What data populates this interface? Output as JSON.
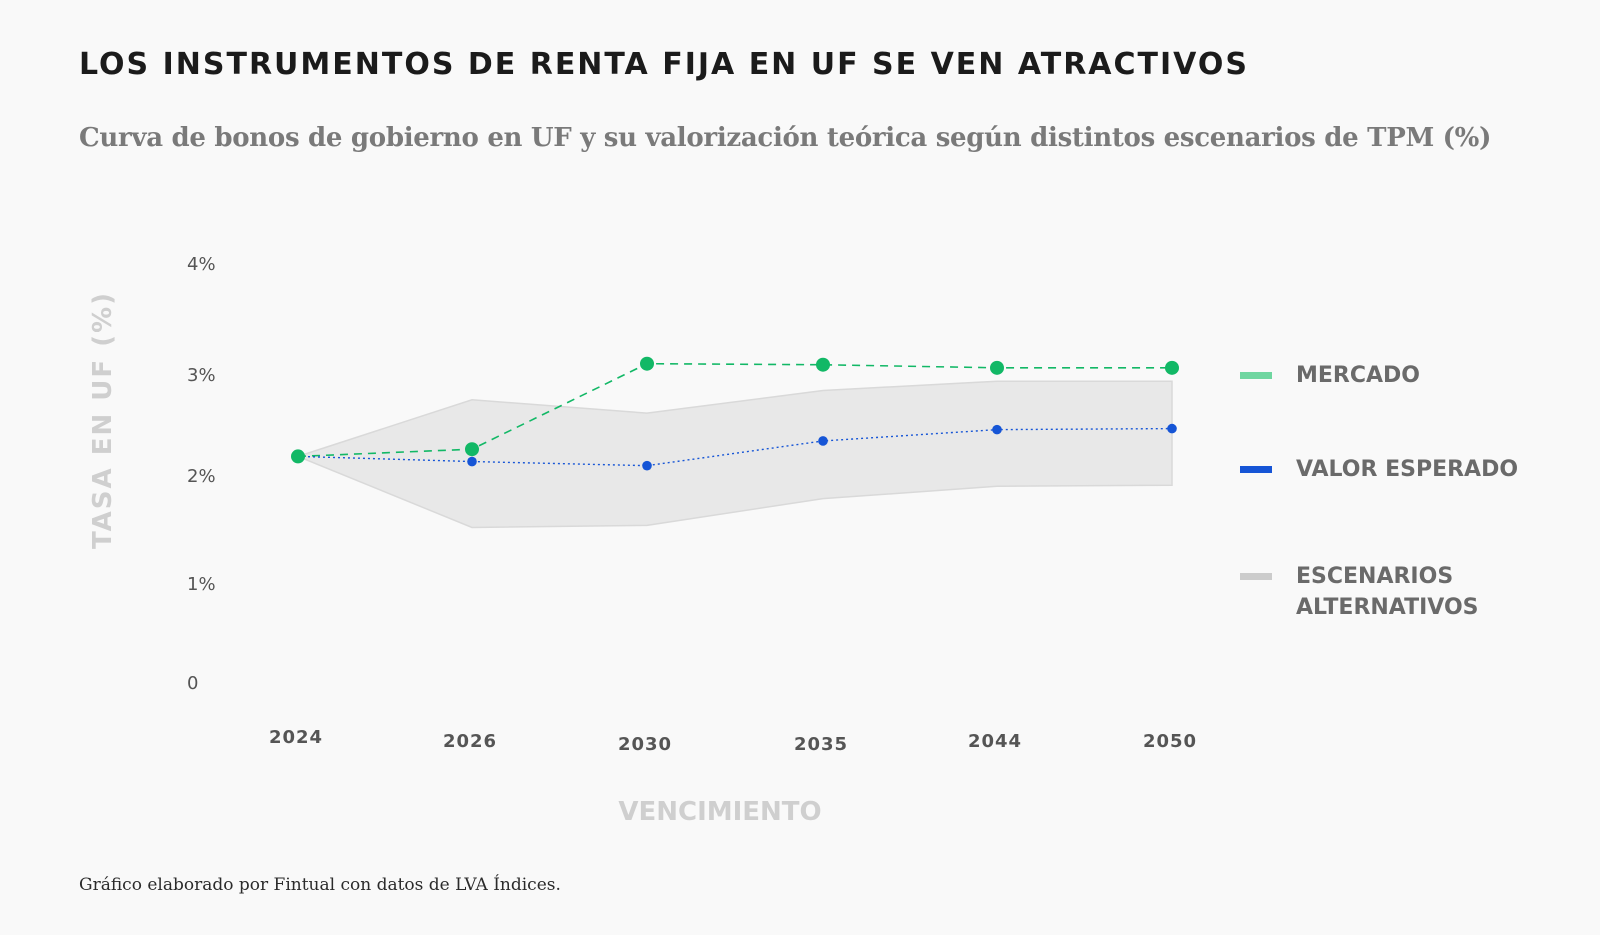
{
  "header": {
    "title": "LOS INSTRUMENTOS DE RENTA FIJA EN UF SE VEN ATRACTIVOS",
    "subtitle": "Curva de bonos de gobierno en UF y su valorización teórica según distintos escenarios de TPM (%)"
  },
  "footer": {
    "source": "Gráfico elaborado por Fintual con datos de LVA Índices."
  },
  "chart_data": {
    "type": "line",
    "title": "LOS INSTRUMENTOS DE RENTA FIJA EN UF SE VEN ATRACTIVOS",
    "subtitle": "Curva de bonos de gobierno en UF y su valorización teórica según distintos escenarios de TPM (%)",
    "xlabel": "VENCIMIENTO",
    "ylabel": "TASA EN UF (%)",
    "categories": [
      "2024",
      "2026",
      "2030",
      "2035",
      "2044",
      "2050"
    ],
    "yticks": [
      {
        "value": 0,
        "label": "0"
      },
      {
        "value": 1,
        "label": "1%"
      },
      {
        "value": 2,
        "label": "2%"
      },
      {
        "value": 3,
        "label": "3%"
      },
      {
        "value": 4,
        "label": "4%"
      }
    ],
    "ylim": [
      0,
      4
    ],
    "grid": false,
    "legend_position": "right",
    "series": [
      {
        "name": "MERCADO",
        "style": "dashed",
        "color": "#12b866",
        "legend_color": "#6fd6a0",
        "values": [
          2.2,
          2.27,
          3.1,
          3.09,
          3.06,
          3.06
        ]
      },
      {
        "name": "VALOR ESPERADO",
        "style": "dotted",
        "color": "#1655d6",
        "legend_color": "#1655d6",
        "values": [
          2.2,
          2.15,
          2.11,
          2.35,
          2.46,
          2.47
        ]
      }
    ],
    "band": {
      "name": "ESCENARIOS ALTERNATIVOS",
      "color": "#e8e8e8",
      "legend_color": "#cccccc",
      "lower": [
        2.2,
        1.51,
        1.53,
        1.79,
        1.91,
        1.92
      ],
      "upper": [
        2.2,
        2.75,
        2.62,
        2.84,
        2.93,
        2.93
      ]
    }
  }
}
